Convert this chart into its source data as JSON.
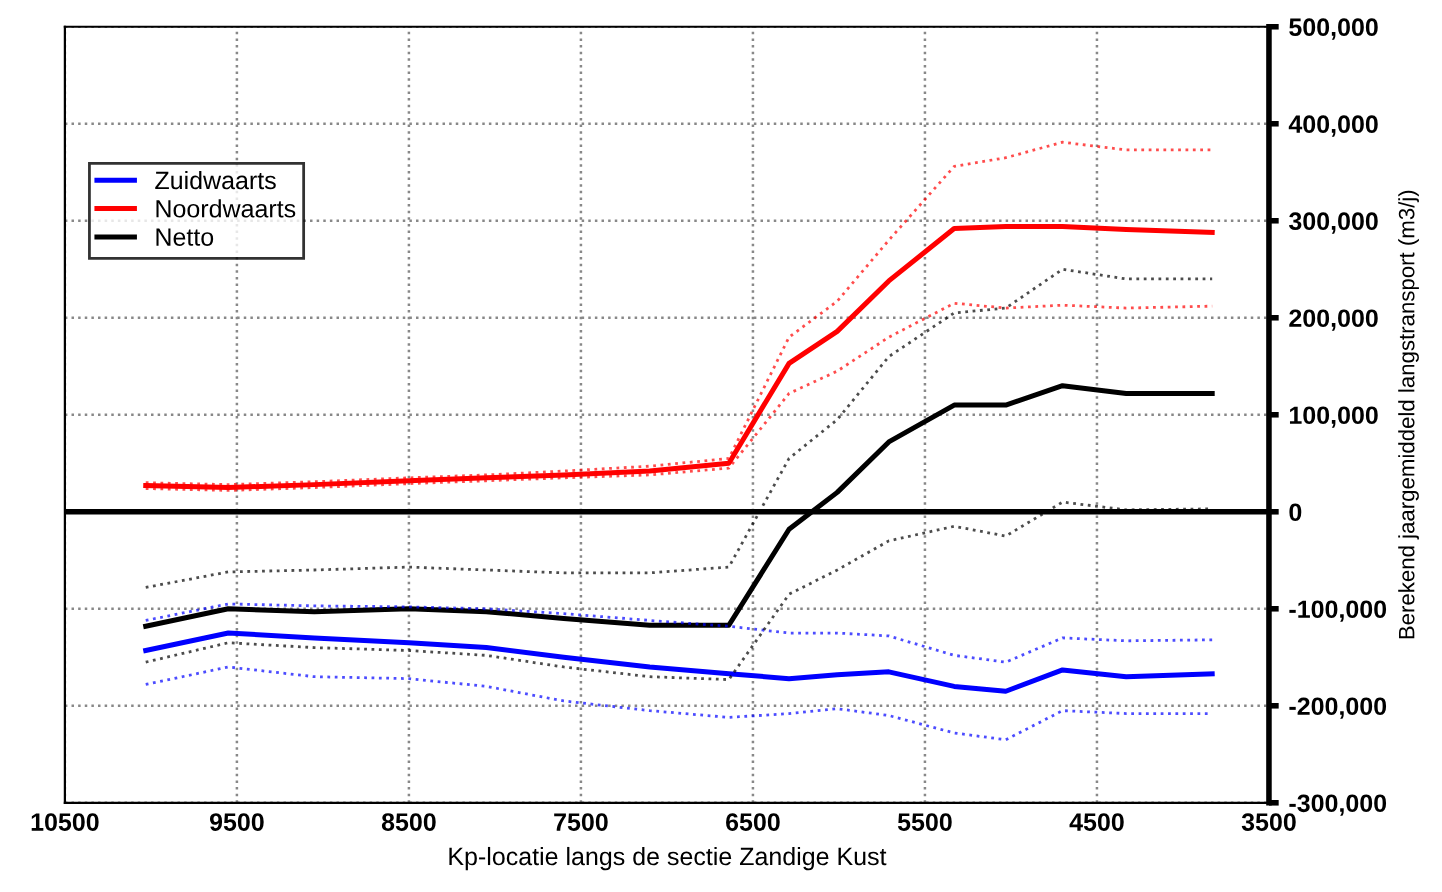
{
  "chart_data": {
    "type": "line",
    "xlabel": "Kp-locatie langs de sectie Zandige Kust",
    "ylabel": "Berekend jaargemiddeld langstransport (m3/j)",
    "x": [
      10030,
      9550,
      9050,
      8500,
      8050,
      7600,
      7100,
      6640,
      6290,
      6010,
      5710,
      5330,
      5030,
      4700,
      4330,
      3830
    ],
    "series": [
      {
        "name": "Zuidwaarts",
        "color": "#0000ff",
        "values": [
          -143000,
          -125000,
          -130000,
          -135000,
          -140000,
          -150000,
          -160000,
          -167000,
          -172000,
          -168000,
          -165000,
          -180000,
          -185000,
          -163000,
          -170000,
          -167000
        ]
      },
      {
        "name": "Noordwaarts",
        "color": "#ff0000",
        "values": [
          27000,
          25000,
          28000,
          32000,
          35000,
          38000,
          42000,
          50000,
          153000,
          186000,
          238000,
          292000,
          294000,
          294000,
          291000,
          288000
        ]
      },
      {
        "name": "Netto",
        "color": "#000000",
        "values": [
          -118000,
          -100000,
          -103000,
          -100000,
          -103000,
          -110000,
          -117000,
          -117000,
          -18000,
          20000,
          72000,
          110000,
          110000,
          130000,
          122000,
          122000
        ]
      },
      {
        "color": "#0000ff",
        "line_style": "dotted",
        "values": [
          -112000,
          -95000,
          -97000,
          -98000,
          -100000,
          -105000,
          -112000,
          -118000,
          -125000,
          -125000,
          -128000,
          -148000,
          -155000,
          -130000,
          -133000,
          -132000
        ]
      },
      {
        "color": "#0000ff",
        "line_style": "dotted",
        "values": [
          -178000,
          -160000,
          -170000,
          -172000,
          -180000,
          -195000,
          -205000,
          -212000,
          -208000,
          -203000,
          -210000,
          -228000,
          -235000,
          -205000,
          -208000,
          -208000
        ]
      },
      {
        "color": "#ff0000",
        "line_style": "dotted",
        "values": [
          30000,
          28000,
          31000,
          35000,
          38000,
          42000,
          47000,
          55000,
          180000,
          217000,
          280000,
          356000,
          365000,
          381000,
          373000,
          373000
        ]
      },
      {
        "color": "#ff0000",
        "line_style": "dotted",
        "values": [
          24000,
          22000,
          25000,
          29000,
          32000,
          35000,
          38000,
          45000,
          122000,
          145000,
          180000,
          215000,
          210000,
          213000,
          210000,
          212000
        ]
      },
      {
        "color": "#000000",
        "line_style": "dotted",
        "values": [
          -78000,
          -62000,
          -60000,
          -57000,
          -60000,
          -63000,
          -63000,
          -57000,
          55000,
          95000,
          160000,
          205000,
          210000,
          250000,
          240000,
          240000
        ]
      },
      {
        "color": "#000000",
        "line_style": "dotted",
        "values": [
          -155000,
          -135000,
          -140000,
          -143000,
          -148000,
          -160000,
          -170000,
          -173000,
          -85000,
          -60000,
          -30000,
          -15000,
          -25000,
          10000,
          2000,
          3000
        ]
      }
    ],
    "xlim": [
      10500,
      3500
    ],
    "xticks": [
      10500,
      9500,
      8500,
      7500,
      6500,
      5500,
      4500,
      3500
    ],
    "ylim": [
      -300000,
      500000
    ],
    "yticks": [
      {
        "value": -300000,
        "label": "-300,000"
      },
      {
        "value": -200000,
        "label": "-200,000"
      },
      {
        "value": -100000,
        "label": "-100,000"
      },
      0,
      {
        "value": 100000,
        "label": "100,000"
      },
      {
        "value": 200000,
        "label": "200,000"
      },
      {
        "value": 300000,
        "label": "300,000"
      },
      {
        "value": 400000,
        "label": "400,000"
      },
      {
        "value": 500000,
        "label": "500,000"
      }
    ],
    "ref_lines": [
      {
        "axis": "y",
        "value": 0,
        "color": "#000000"
      }
    ],
    "grid": true,
    "legend": "top left",
    "line_style": "solid",
    "marker": "none"
  }
}
